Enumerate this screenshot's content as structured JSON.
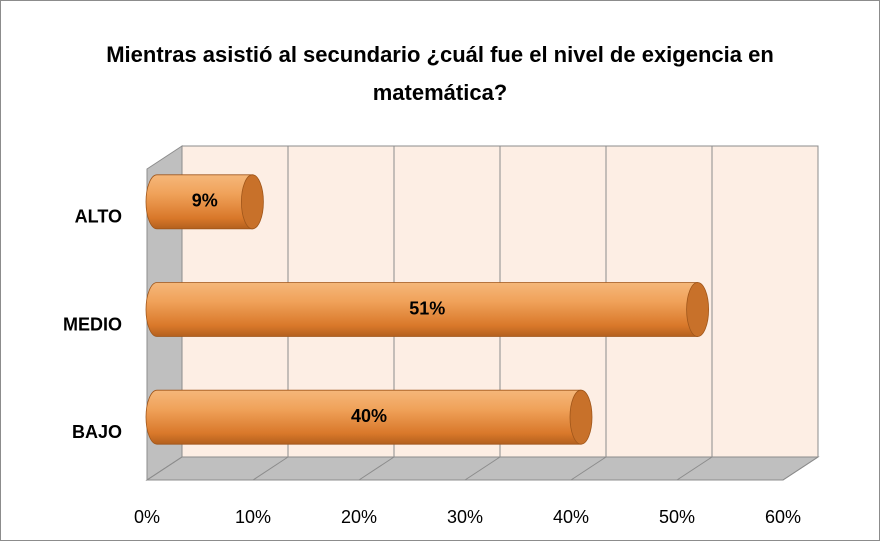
{
  "chart_data": {
    "type": "bar",
    "orientation": "horizontal",
    "title": "Mientras asistió al secundario ¿cuál fue el nivel de exigencia en matemática?",
    "categories": [
      "ALTO",
      "MEDIO",
      "BAJO"
    ],
    "values": [
      9,
      51,
      40
    ],
    "value_labels": [
      "9%",
      "51%",
      "40%"
    ],
    "color": "#e8913a",
    "xlim": [
      0,
      60
    ],
    "xticks": [
      {
        "value": 0,
        "label": "0%"
      },
      {
        "value": 10,
        "label": "10%"
      },
      {
        "value": 20,
        "label": "20%"
      },
      {
        "value": 30,
        "label": "30%"
      },
      {
        "value": 40,
        "label": "40%"
      },
      {
        "value": 50,
        "label": "50%"
      },
      {
        "value": 60,
        "label": "60%"
      }
    ],
    "grid": true
  }
}
